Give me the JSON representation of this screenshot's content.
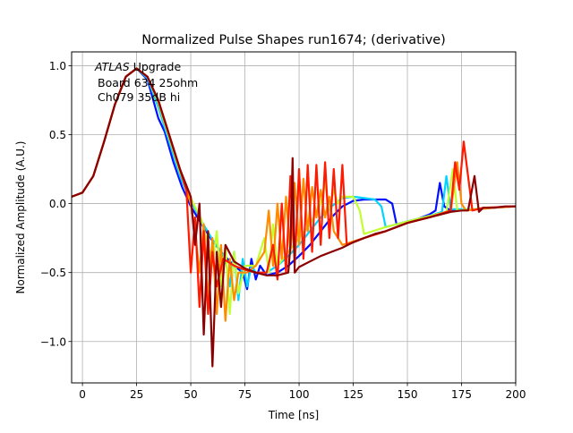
{
  "chart_data": {
    "type": "line",
    "title": "Normalized Pulse Shapes run1674; (derivative)",
    "xlabel": "Time [ns]",
    "ylabel": "Normalized Amplitude (A.U.)",
    "xlim": [
      -5,
      200
    ],
    "ylim": [
      -1.3,
      1.1
    ],
    "xticks": [
      0,
      25,
      50,
      75,
      100,
      125,
      150,
      175,
      200
    ],
    "xtick_labels": [
      "0",
      "25",
      "50",
      "75",
      "100",
      "125",
      "150",
      "175",
      "200"
    ],
    "yticks": [
      -1.0,
      -0.5,
      0.0,
      0.5,
      1.0
    ],
    "ytick_labels": [
      "−1.0",
      "−0.5",
      "0.0",
      "0.5",
      "1.0"
    ],
    "grid": true,
    "colormap": "jet",
    "annotation": {
      "line1_italic": "ATLAS",
      "line1_rest": " Upgrade",
      "line2": "Board 634 25ohm",
      "line3": "Ch079 35dB hi"
    },
    "series": [
      {
        "color": "#0010ff",
        "points": [
          [
            -5,
            0.05
          ],
          [
            0,
            0.08
          ],
          [
            5,
            0.2
          ],
          [
            10,
            0.45
          ],
          [
            15,
            0.72
          ],
          [
            20,
            0.92
          ],
          [
            25,
            0.98
          ],
          [
            30,
            0.9
          ],
          [
            35,
            0.62
          ],
          [
            38,
            0.52
          ],
          [
            42,
            0.3
          ],
          [
            46,
            0.12
          ],
          [
            50,
            -0.02
          ],
          [
            55,
            -0.15
          ],
          [
            60,
            -0.27
          ],
          [
            65,
            -0.37
          ],
          [
            70,
            -0.45
          ],
          [
            74,
            -0.5
          ],
          [
            76,
            -0.62
          ],
          [
            78,
            -0.4
          ],
          [
            80,
            -0.55
          ],
          [
            82,
            -0.45
          ],
          [
            85,
            -0.52
          ],
          [
            90,
            -0.5
          ],
          [
            95,
            -0.45
          ],
          [
            100,
            -0.38
          ],
          [
            105,
            -0.3
          ],
          [
            110,
            -0.2
          ],
          [
            115,
            -0.1
          ],
          [
            120,
            -0.02
          ],
          [
            125,
            0.02
          ],
          [
            130,
            0.03
          ],
          [
            135,
            0.03
          ],
          [
            140,
            0.03
          ],
          [
            143,
            0.0
          ],
          [
            145,
            -0.15
          ],
          [
            150,
            -0.13
          ],
          [
            155,
            -0.11
          ],
          [
            160,
            -0.08
          ],
          [
            163,
            -0.05
          ],
          [
            165,
            0.15
          ],
          [
            167,
            -0.02
          ],
          [
            170,
            -0.05
          ],
          [
            180,
            -0.04
          ],
          [
            190,
            -0.03
          ],
          [
            200,
            -0.02
          ]
        ]
      },
      {
        "color": "#00d4ff",
        "points": [
          [
            -5,
            0.05
          ],
          [
            0,
            0.08
          ],
          [
            5,
            0.2
          ],
          [
            10,
            0.45
          ],
          [
            15,
            0.72
          ],
          [
            20,
            0.92
          ],
          [
            25,
            0.98
          ],
          [
            30,
            0.91
          ],
          [
            35,
            0.7
          ],
          [
            40,
            0.45
          ],
          [
            45,
            0.2
          ],
          [
            50,
            0.02
          ],
          [
            55,
            -0.13
          ],
          [
            60,
            -0.26
          ],
          [
            64,
            -0.35
          ],
          [
            66,
            -0.4
          ],
          [
            68,
            -0.6
          ],
          [
            70,
            -0.35
          ],
          [
            72,
            -0.7
          ],
          [
            74,
            -0.4
          ],
          [
            76,
            -0.6
          ],
          [
            78,
            -0.45
          ],
          [
            80,
            -0.5
          ],
          [
            85,
            -0.5
          ],
          [
            90,
            -0.45
          ],
          [
            95,
            -0.38
          ],
          [
            100,
            -0.3
          ],
          [
            105,
            -0.2
          ],
          [
            110,
            -0.1
          ],
          [
            115,
            -0.02
          ],
          [
            120,
            0.04
          ],
          [
            125,
            0.05
          ],
          [
            130,
            0.04
          ],
          [
            135,
            0.03
          ],
          [
            138,
            -0.02
          ],
          [
            140,
            -0.17
          ],
          [
            150,
            -0.13
          ],
          [
            160,
            -0.09
          ],
          [
            166,
            -0.06
          ],
          [
            168,
            0.2
          ],
          [
            170,
            -0.04
          ],
          [
            180,
            -0.04
          ],
          [
            190,
            -0.03
          ],
          [
            200,
            -0.02
          ]
        ]
      },
      {
        "color": "#c0ff30",
        "points": [
          [
            -5,
            0.05
          ],
          [
            0,
            0.08
          ],
          [
            5,
            0.2
          ],
          [
            10,
            0.45
          ],
          [
            15,
            0.72
          ],
          [
            20,
            0.92
          ],
          [
            25,
            0.98
          ],
          [
            30,
            0.92
          ],
          [
            35,
            0.73
          ],
          [
            40,
            0.48
          ],
          [
            45,
            0.23
          ],
          [
            50,
            0.04
          ],
          [
            55,
            -0.12
          ],
          [
            58,
            -0.3
          ],
          [
            60,
            -0.45
          ],
          [
            62,
            -0.2
          ],
          [
            64,
            -0.6
          ],
          [
            66,
            -0.3
          ],
          [
            68,
            -0.8
          ],
          [
            70,
            -0.35
          ],
          [
            72,
            -0.65
          ],
          [
            75,
            -0.45
          ],
          [
            80,
            -0.45
          ],
          [
            84,
            -0.25
          ],
          [
            86,
            -0.5
          ],
          [
            88,
            -0.15
          ],
          [
            90,
            -0.45
          ],
          [
            95,
            -0.35
          ],
          [
            100,
            -0.25
          ],
          [
            105,
            -0.15
          ],
          [
            110,
            0.0
          ],
          [
            112,
            0.15
          ],
          [
            114,
            -0.05
          ],
          [
            116,
            0.1
          ],
          [
            118,
            0.0
          ],
          [
            120,
            0.05
          ],
          [
            125,
            0.05
          ],
          [
            128,
            -0.05
          ],
          [
            130,
            -0.22
          ],
          [
            140,
            -0.17
          ],
          [
            150,
            -0.13
          ],
          [
            160,
            -0.09
          ],
          [
            168,
            -0.06
          ],
          [
            171,
            0.25
          ],
          [
            173,
            -0.05
          ],
          [
            180,
            -0.04
          ],
          [
            190,
            -0.03
          ],
          [
            200,
            -0.02
          ]
        ]
      },
      {
        "color": "#ff8c00",
        "points": [
          [
            -5,
            0.05
          ],
          [
            0,
            0.08
          ],
          [
            5,
            0.2
          ],
          [
            10,
            0.45
          ],
          [
            15,
            0.72
          ],
          [
            20,
            0.92
          ],
          [
            25,
            0.98
          ],
          [
            30,
            0.92
          ],
          [
            35,
            0.74
          ],
          [
            40,
            0.49
          ],
          [
            45,
            0.24
          ],
          [
            50,
            0.0
          ],
          [
            52,
            -0.2
          ],
          [
            54,
            -0.5
          ],
          [
            56,
            -0.15
          ],
          [
            58,
            -0.7
          ],
          [
            60,
            -0.25
          ],
          [
            62,
            -0.8
          ],
          [
            64,
            -0.3
          ],
          [
            66,
            -0.85
          ],
          [
            68,
            -0.4
          ],
          [
            70,
            -0.7
          ],
          [
            72,
            -0.5
          ],
          [
            76,
            -0.5
          ],
          [
            80,
            -0.45
          ],
          [
            84,
            -0.35
          ],
          [
            86,
            -0.05
          ],
          [
            88,
            -0.45
          ],
          [
            90,
            0.0
          ],
          [
            92,
            -0.4
          ],
          [
            94,
            0.05
          ],
          [
            96,
            -0.35
          ],
          [
            98,
            0.15
          ],
          [
            100,
            -0.3
          ],
          [
            102,
            0.18
          ],
          [
            104,
            -0.2
          ],
          [
            106,
            0.12
          ],
          [
            108,
            -0.1
          ],
          [
            110,
            0.1
          ],
          [
            112,
            -0.1
          ],
          [
            114,
            0.05
          ],
          [
            116,
            -0.2
          ],
          [
            120,
            -0.3
          ],
          [
            130,
            -0.25
          ],
          [
            140,
            -0.2
          ],
          [
            150,
            -0.14
          ],
          [
            160,
            -0.1
          ],
          [
            170,
            -0.06
          ],
          [
            173,
            0.3
          ],
          [
            175,
            0.0
          ],
          [
            177,
            -0.05
          ],
          [
            190,
            -0.03
          ],
          [
            200,
            -0.02
          ]
        ]
      },
      {
        "color": "#ff1a00",
        "points": [
          [
            -5,
            0.05
          ],
          [
            0,
            0.08
          ],
          [
            5,
            0.2
          ],
          [
            10,
            0.45
          ],
          [
            15,
            0.72
          ],
          [
            20,
            0.92
          ],
          [
            25,
            0.98
          ],
          [
            30,
            0.92
          ],
          [
            35,
            0.75
          ],
          [
            40,
            0.5
          ],
          [
            45,
            0.25
          ],
          [
            48,
            0.1
          ],
          [
            50,
            -0.5
          ],
          [
            52,
            -0.1
          ],
          [
            54,
            -0.75
          ],
          [
            56,
            -0.2
          ],
          [
            58,
            -0.8
          ],
          [
            60,
            -0.35
          ],
          [
            62,
            -0.6
          ],
          [
            65,
            -0.4
          ],
          [
            70,
            -0.45
          ],
          [
            75,
            -0.48
          ],
          [
            80,
            -0.5
          ],
          [
            85,
            -0.5
          ],
          [
            88,
            -0.3
          ],
          [
            90,
            -0.55
          ],
          [
            92,
            0.0
          ],
          [
            94,
            -0.5
          ],
          [
            96,
            0.2
          ],
          [
            98,
            -0.45
          ],
          [
            100,
            0.25
          ],
          [
            102,
            -0.4
          ],
          [
            104,
            0.28
          ],
          [
            106,
            -0.35
          ],
          [
            108,
            0.28
          ],
          [
            110,
            -0.3
          ],
          [
            112,
            0.3
          ],
          [
            114,
            -0.25
          ],
          [
            116,
            0.25
          ],
          [
            118,
            -0.25
          ],
          [
            120,
            0.28
          ],
          [
            122,
            -0.3
          ],
          [
            125,
            -0.28
          ],
          [
            130,
            -0.25
          ],
          [
            140,
            -0.2
          ],
          [
            150,
            -0.14
          ],
          [
            160,
            -0.1
          ],
          [
            170,
            -0.05
          ],
          [
            172,
            0.3
          ],
          [
            174,
            0.1
          ],
          [
            176,
            0.45
          ],
          [
            178,
            0.2
          ],
          [
            180,
            -0.05
          ],
          [
            185,
            -0.03
          ],
          [
            200,
            -0.02
          ]
        ]
      },
      {
        "color": "#8b0000",
        "points": [
          [
            -5,
            0.05
          ],
          [
            0,
            0.08
          ],
          [
            5,
            0.2
          ],
          [
            10,
            0.45
          ],
          [
            15,
            0.72
          ],
          [
            20,
            0.92
          ],
          [
            25,
            0.98
          ],
          [
            30,
            0.92
          ],
          [
            35,
            0.75
          ],
          [
            40,
            0.5
          ],
          [
            45,
            0.25
          ],
          [
            50,
            0.05
          ],
          [
            52,
            -0.3
          ],
          [
            54,
            0.0
          ],
          [
            56,
            -0.95
          ],
          [
            58,
            -0.2
          ],
          [
            60,
            -1.18
          ],
          [
            62,
            -0.35
          ],
          [
            64,
            -0.75
          ],
          [
            66,
            -0.3
          ],
          [
            70,
            -0.42
          ],
          [
            75,
            -0.47
          ],
          [
            80,
            -0.5
          ],
          [
            85,
            -0.52
          ],
          [
            90,
            -0.52
          ],
          [
            95,
            -0.5
          ],
          [
            96,
            -0.3
          ],
          [
            97,
            0.33
          ],
          [
            98,
            -0.5
          ],
          [
            100,
            -0.46
          ],
          [
            105,
            -0.42
          ],
          [
            110,
            -0.38
          ],
          [
            115,
            -0.35
          ],
          [
            120,
            -0.32
          ],
          [
            125,
            -0.28
          ],
          [
            130,
            -0.25
          ],
          [
            135,
            -0.22
          ],
          [
            140,
            -0.2
          ],
          [
            145,
            -0.17
          ],
          [
            150,
            -0.14
          ],
          [
            155,
            -0.12
          ],
          [
            160,
            -0.1
          ],
          [
            165,
            -0.08
          ],
          [
            170,
            -0.06
          ],
          [
            175,
            -0.05
          ],
          [
            178,
            -0.05
          ],
          [
            181,
            0.2
          ],
          [
            183,
            -0.06
          ],
          [
            185,
            -0.03
          ],
          [
            190,
            -0.03
          ],
          [
            195,
            -0.02
          ],
          [
            200,
            -0.02
          ]
        ]
      }
    ]
  }
}
